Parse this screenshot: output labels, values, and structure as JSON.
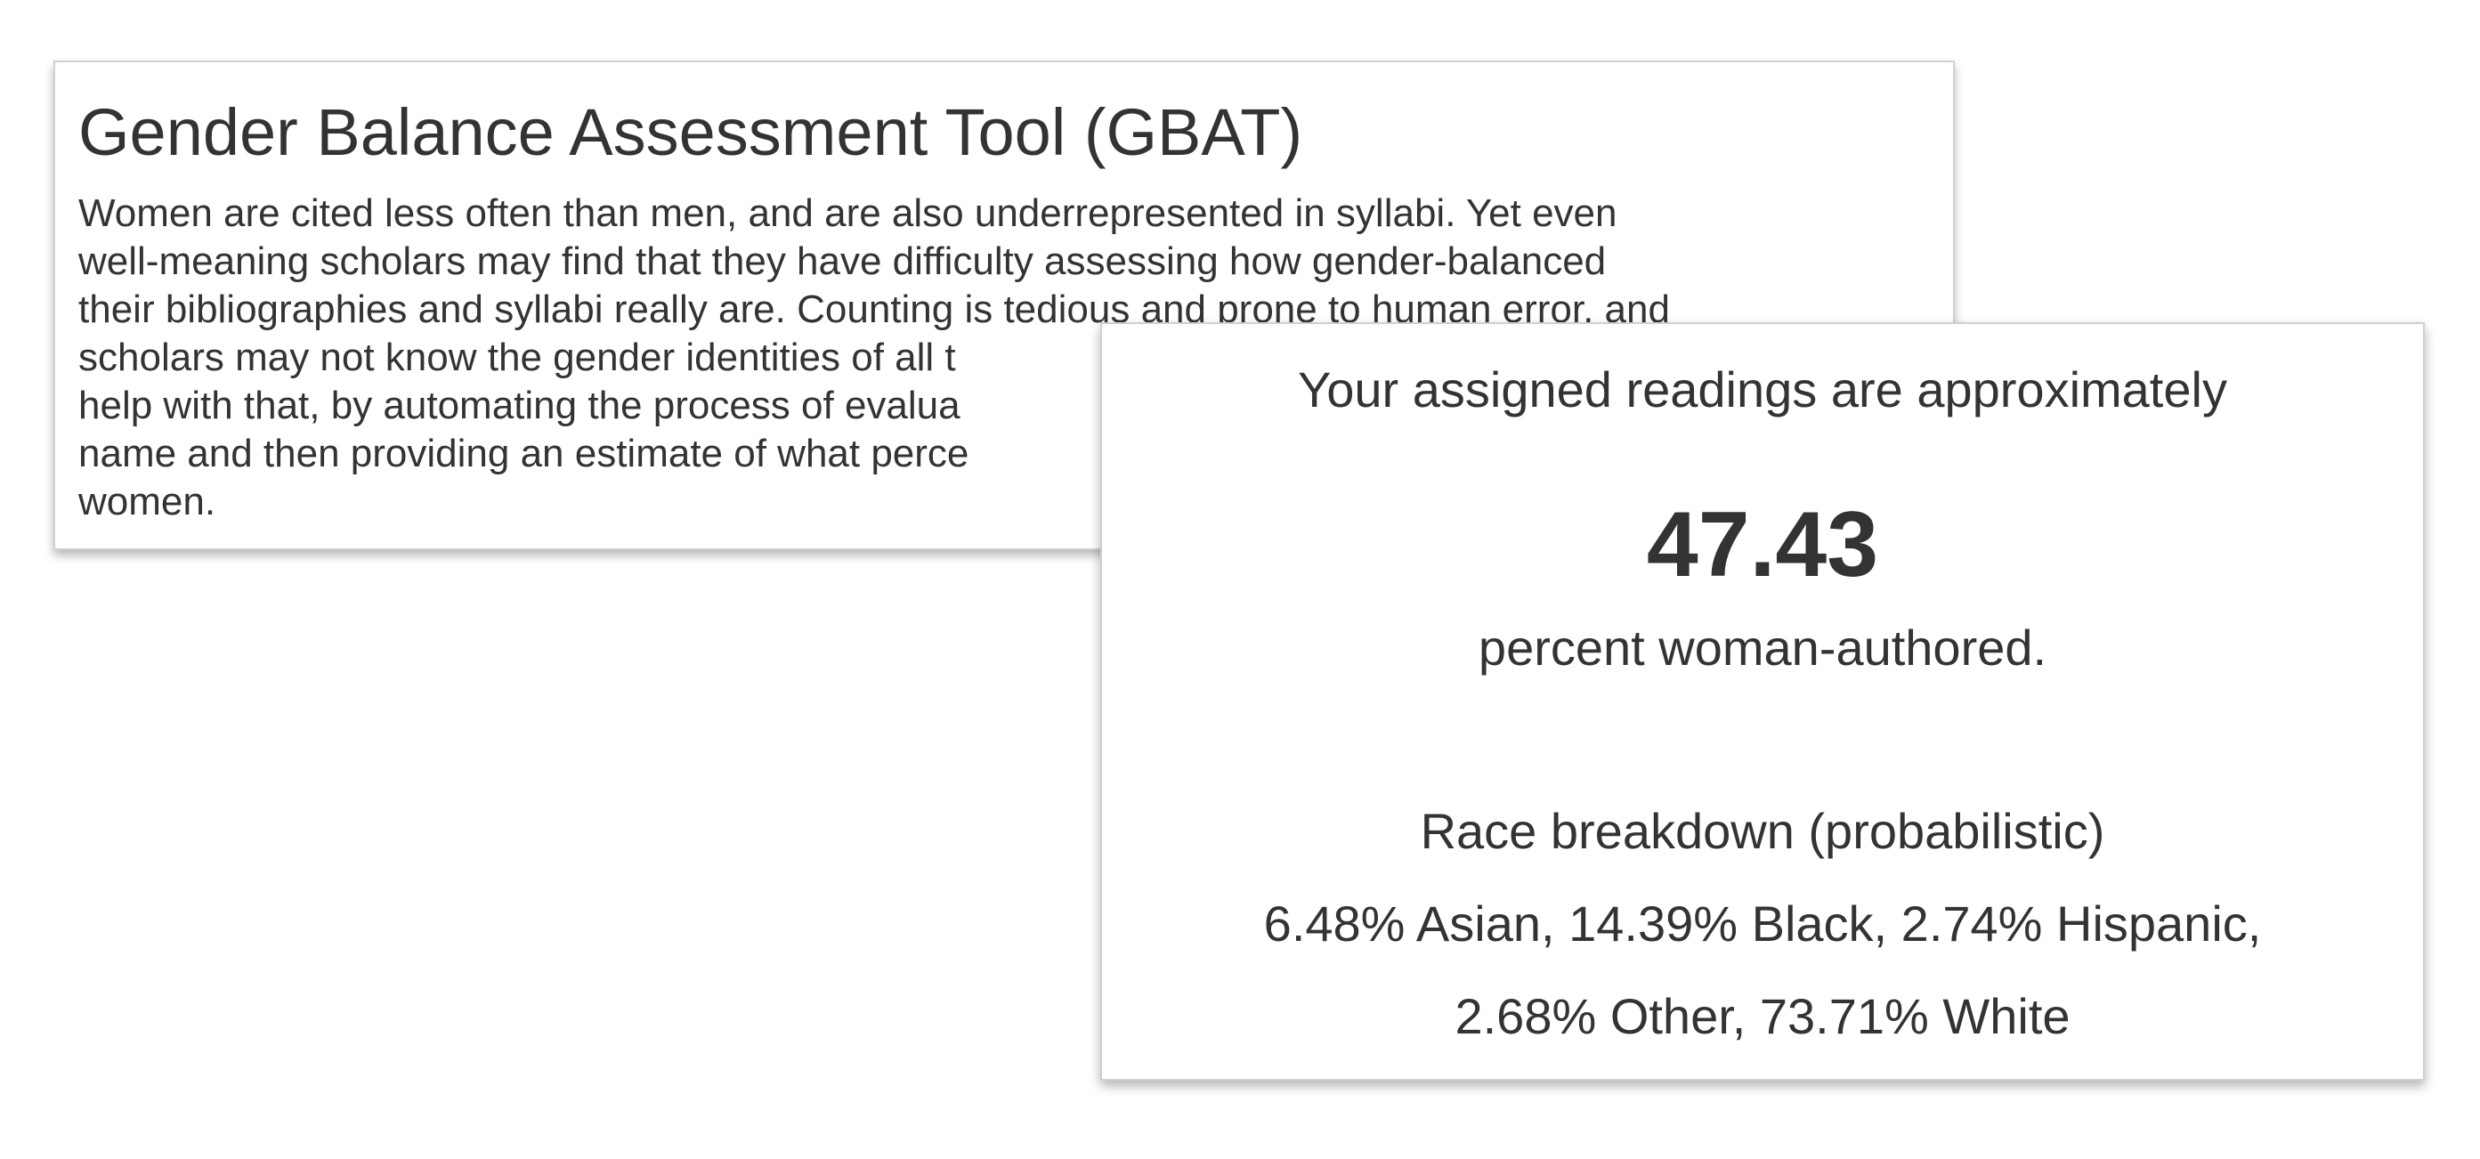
{
  "intro": {
    "title": "Gender Balance Assessment Tool (GBAT)",
    "body_lines": [
      "Women are cited less often than men, and are also underrepresented in syllabi. Yet even",
      "well-meaning scholars may find that they have difficulty assessing how gender-balanced",
      "their bibliographies and syllabi really are. Counting is tedious and prone to human error, and",
      "scholars may not know the gender identities of all t",
      "help with that, by automating the process of evalua",
      "name and then providing an estimate of what perce",
      "women."
    ]
  },
  "result": {
    "intro_text": "Your assigned readings are approximately",
    "percent_value": "47.43",
    "suffix_text": "percent woman-authored.",
    "race_heading": "Race breakdown (probabilistic)",
    "race_line_1": "6.48% Asian, 14.39% Black, 2.74% Hispanic,",
    "race_line_2": "2.68% Other, 73.71% White"
  }
}
